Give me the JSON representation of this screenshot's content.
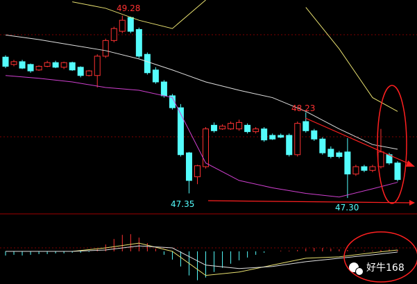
{
  "chart_data": {
    "type": "candlestick",
    "open": [
      48.83,
      48.75,
      48.78,
      48.75,
      48.69,
      48.73,
      48.77,
      48.72,
      48.77,
      48.72,
      48.63,
      48.63,
      48.84,
      49.01,
      49.11,
      49.26,
      49.13,
      48.86,
      48.69,
      48.56,
      48.41,
      48.28,
      47.79,
      47.53,
      47.64,
      48.09,
      48.05,
      48.05,
      48.05,
      48.09,
      48.02,
      48.05,
      47.98,
      47.98,
      47.98,
      47.77,
      48.13,
      48.03,
      47.94,
      47.83,
      47.79,
      47.8,
      47.56,
      47.64,
      47.6,
      47.64,
      47.77,
      47.68
    ],
    "high": [
      48.85,
      48.8,
      48.8,
      48.76,
      48.74,
      48.79,
      48.79,
      48.78,
      48.78,
      48.73,
      48.69,
      48.86,
      49.03,
      49.16,
      49.28,
      49.27,
      49.15,
      48.88,
      48.72,
      48.58,
      48.43,
      48.32,
      47.8,
      47.66,
      48.07,
      48.12,
      48.1,
      48.13,
      48.15,
      48.11,
      48.07,
      48.07,
      48.0,
      48.0,
      48.0,
      48.13,
      48.23,
      48.05,
      47.96,
      47.86,
      47.81,
      47.95,
      47.66,
      47.66,
      47.66,
      48.05,
      47.79,
      47.7
    ],
    "low": [
      48.71,
      48.73,
      48.7,
      48.66,
      48.68,
      48.72,
      48.71,
      48.7,
      48.68,
      48.61,
      48.62,
      48.5,
      48.82,
      48.99,
      49.09,
      49.09,
      48.82,
      48.64,
      48.54,
      48.39,
      48.26,
      47.75,
      47.35,
      47.45,
      47.62,
      48.01,
      48.04,
      48.04,
      48.03,
      48.0,
      48.0,
      47.91,
      47.93,
      47.95,
      47.75,
      47.75,
      48.01,
      47.92,
      47.77,
      47.73,
      47.73,
      47.3,
      47.54,
      47.58,
      47.58,
      47.62,
      47.66,
      47.48
    ],
    "close": [
      48.73,
      48.78,
      48.71,
      48.68,
      48.73,
      48.77,
      48.72,
      48.77,
      48.69,
      48.63,
      48.68,
      48.84,
      49.01,
      49.14,
      49.23,
      49.11,
      48.84,
      48.66,
      48.56,
      48.41,
      48.28,
      47.77,
      47.49,
      47.65,
      48.05,
      48.03,
      48.08,
      48.11,
      48.12,
      48.02,
      48.05,
      47.93,
      47.94,
      47.96,
      47.77,
      48.11,
      48.03,
      47.94,
      47.79,
      47.75,
      47.75,
      47.56,
      47.64,
      47.6,
      47.64,
      47.8,
      47.68,
      47.5
    ],
    "up_color": "#ff3232",
    "down_color": "#54fcfc",
    "ylim": [
      47.15,
      49.45
    ],
    "bands": {
      "index": [
        0,
        4,
        8,
        12,
        16,
        20,
        24,
        28,
        32,
        36,
        40,
        44,
        47
      ],
      "series": [
        {
          "color": "#e8e070",
          "values": [
            null,
            null,
            49.43,
            49.36,
            49.23,
            49.14,
            49.45,
            null,
            null,
            49.37,
            48.92,
            48.39,
            48.24
          ]
        },
        {
          "color": "#e0e0e0",
          "values": [
            49.07,
            49.02,
            48.96,
            48.9,
            48.81,
            48.69,
            48.56,
            48.47,
            48.39,
            48.24,
            48.05,
            47.88,
            47.83
          ]
        },
        {
          "color": "#d040d0",
          "values": [
            48.63,
            48.6,
            48.56,
            48.5,
            48.47,
            48.39,
            47.68,
            47.49,
            47.41,
            47.35,
            47.31,
            47.4,
            47.47
          ]
        }
      ]
    },
    "annotations": [
      "49.28",
      "48.23",
      "47.35",
      "47.30"
    ],
    "macd": {
      "ylim": [
        -50,
        50
      ],
      "histogram": [
        -6,
        -5,
        -6,
        -5,
        -4,
        -4,
        -3,
        -3,
        -2,
        -2,
        -1,
        3,
        10,
        18,
        24,
        25,
        20,
        12,
        4,
        -5,
        -12,
        -22,
        -35,
        -42,
        -38,
        -30,
        -24,
        -18,
        -13,
        -9,
        -5,
        -2,
        0,
        1,
        1,
        2,
        4,
        5,
        5,
        4,
        3,
        2,
        1,
        1,
        1,
        2,
        3,
        2
      ],
      "lines": [
        {
          "color": "#e8e070",
          "values": [
            0,
            0,
            0,
            5,
            12,
            0,
            -35,
            -30,
            -20,
            -10,
            -8,
            -2,
            2
          ]
        },
        {
          "color": "#e0e0e0",
          "values": [
            0,
            0,
            0,
            2,
            8,
            5,
            -20,
            -25,
            -22,
            -15,
            -10,
            -5,
            -1
          ]
        }
      ]
    },
    "watermark": "好牛168"
  }
}
